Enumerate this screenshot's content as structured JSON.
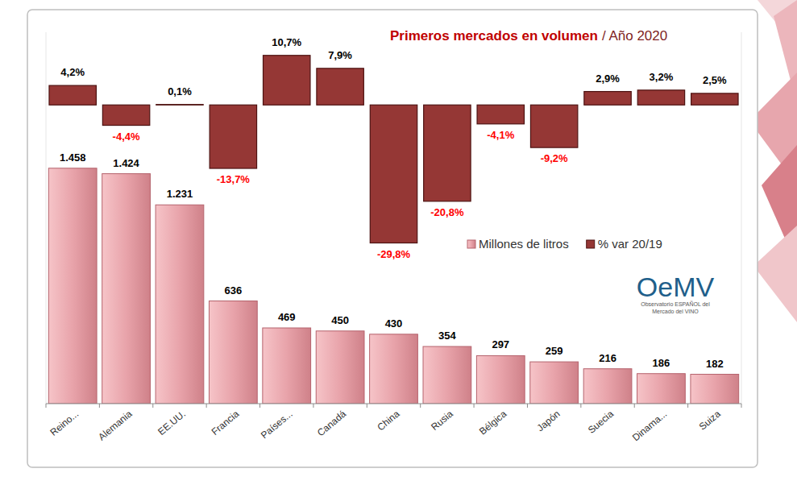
{
  "chart_data": {
    "type": "bar",
    "title": "Primeros mercados en volumen",
    "subtitle": "/ Año 2020",
    "categories": [
      "Reino...",
      "Alemania",
      "EE.UU.",
      "Francia",
      "Países...",
      "Canadá",
      "China",
      "Rusia",
      "Bélgica",
      "Japón",
      "Suecia",
      "Dinama...",
      "Suiza"
    ],
    "series": [
      {
        "name": "Millones de litros",
        "type": "bar",
        "color": "#e8a3aa",
        "values": [
          1458,
          1424,
          1231,
          636,
          469,
          450,
          430,
          354,
          297,
          259,
          216,
          186,
          182
        ],
        "value_labels": [
          "1.458",
          "1.424",
          "1.231",
          "636",
          "469",
          "450",
          "430",
          "354",
          "297",
          "259",
          "216",
          "186",
          "182"
        ]
      },
      {
        "name": "% var 20/19",
        "type": "bar",
        "axis": "y2",
        "color": "#953735",
        "values": [
          4.2,
          -4.4,
          0.1,
          -13.7,
          10.7,
          7.9,
          -29.8,
          -20.8,
          -4.1,
          -9.2,
          2.9,
          3.2,
          2.5
        ],
        "value_labels": [
          "4,2%",
          "-4,4%",
          "0,1%",
          "-13,7%",
          "10,7%",
          "7,9%",
          "-29,8%",
          "-20,8%",
          "-4,1%",
          "-9,2%",
          "2,9%",
          "3,2%",
          "2,5%"
        ]
      }
    ],
    "ylim": [
      0,
      2300
    ],
    "y2lim": [
      -64.5,
      15.7
    ],
    "tick_labels": false,
    "grid": false,
    "data_labels": true,
    "legend": "center-right",
    "annotations": [
      "OeMV",
      "Observatorio ESPAÑOL del Mercado del VINO"
    ]
  }
}
